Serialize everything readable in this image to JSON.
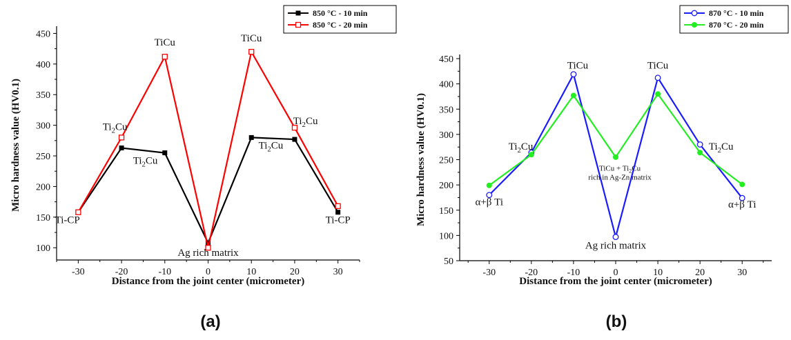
{
  "chart_data": [
    {
      "type": "line",
      "panel_label": "(a)",
      "xlabel": "Distance from the joint center (micrometer)",
      "ylabel": "Micro hardness value (HV0.1)",
      "xlim": [
        -35,
        35
      ],
      "ylim": [
        80,
        455
      ],
      "xticks": [
        -30,
        -20,
        -10,
        0,
        10,
        20,
        30
      ],
      "yticks": [
        100,
        150,
        200,
        250,
        300,
        350,
        400,
        450
      ],
      "legend_position": "top-right",
      "x": [
        -30,
        -20,
        -10,
        0,
        10,
        20,
        30
      ],
      "series": [
        {
          "name": "850 °C - 10 min",
          "color": "#000000",
          "marker": "filled-square",
          "values": [
            158,
            263,
            255,
            108,
            280,
            277,
            158
          ]
        },
        {
          "name": "850 °C - 20 min",
          "color": "#ff0000",
          "marker": "open-square",
          "values": [
            158,
            280,
            412,
            100,
            420,
            296,
            168
          ]
        }
      ],
      "annotations": [
        {
          "text": "TiCu",
          "x": -10,
          "y": 430
        },
        {
          "text": "TiCu",
          "x": 10,
          "y": 437
        },
        {
          "main": "Ti",
          "sub": "2",
          "tail": "Cu",
          "x": -21.5,
          "y": 292
        },
        {
          "main": "Ti",
          "sub": "2",
          "tail": "Cu",
          "x": -14.5,
          "y": 237
        },
        {
          "main": "Ti",
          "sub": "2",
          "tail": "Cu",
          "x": 14.5,
          "y": 262
        },
        {
          "main": "Ti",
          "sub": "2",
          "tail": "Cu",
          "x": 22.5,
          "y": 302
        },
        {
          "text": "Ti-CP",
          "x": -32.5,
          "y": 140
        },
        {
          "text": "Ag rich matrix",
          "x": 0,
          "y": 87
        },
        {
          "text": "Ti-CP",
          "x": 30,
          "y": 140
        }
      ]
    },
    {
      "type": "line",
      "panel_label": "(b)",
      "xlabel": "Distance from the joint center (micrometer)",
      "ylabel": "Micro hardness value (HV0.1)",
      "xlim": [
        -37,
        37
      ],
      "ylim": [
        50,
        450
      ],
      "xticks": [
        -30,
        -20,
        -10,
        0,
        10,
        20,
        30
      ],
      "yticks": [
        50,
        100,
        150,
        200,
        250,
        300,
        350,
        400,
        450
      ],
      "legend_position": "top-right",
      "x": [
        -30,
        -20,
        -10,
        0,
        10,
        20,
        30
      ],
      "series": [
        {
          "name": "870 °C - 10 min",
          "color": "#1a1aff",
          "marker": "open-circle",
          "values": [
            180,
            264,
            419,
            97,
            412,
            280,
            174
          ]
        },
        {
          "name": "870 °C - 20 min",
          "color": "#22ee22",
          "marker": "filled-circle",
          "values": [
            199,
            260,
            377,
            255,
            380,
            264,
            201
          ]
        }
      ],
      "annotations": [
        {
          "text": "TiCu",
          "x": -9,
          "y": 430
        },
        {
          "text": "TiCu",
          "x": 10,
          "y": 430
        },
        {
          "main": "Ti",
          "sub": "2",
          "tail": "Cu",
          "x": -22.5,
          "y": 270
        },
        {
          "main": "Ti",
          "sub": "2",
          "tail": "Cu",
          "x": 25,
          "y": 270
        },
        {
          "text": "α+β Ti",
          "x": -30,
          "y": 160
        },
        {
          "text": "α+β Ti",
          "x": 30,
          "y": 155
        },
        {
          "text": "Ag rich matrix",
          "x": 0,
          "y": 74
        },
        {
          "line1": "TiCu + Ti",
          "line1_sub": "2",
          "line1_tail": "Cu",
          "line2": "rich in Ag-Zn matrix",
          "x": 1,
          "y": 228
        }
      ]
    }
  ]
}
